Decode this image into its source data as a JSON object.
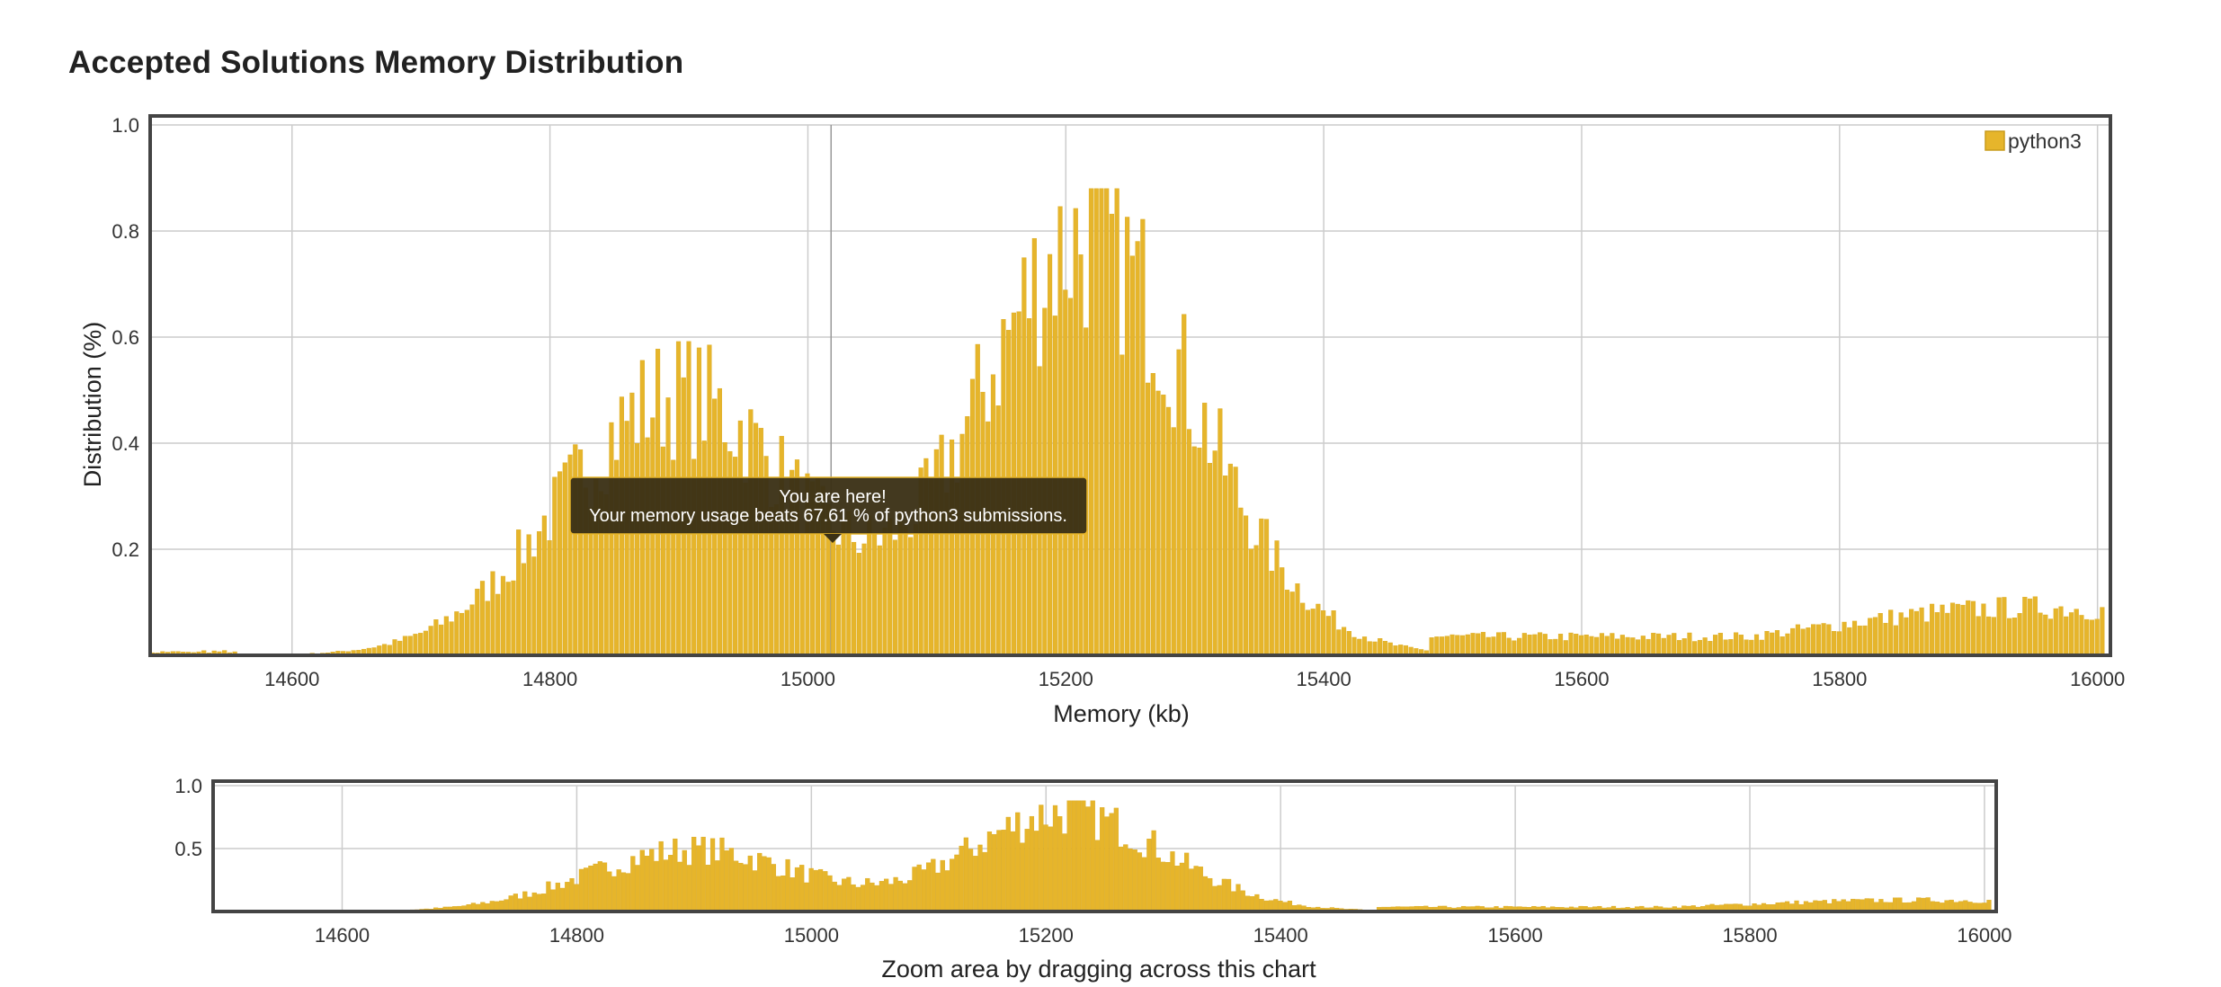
{
  "page": {
    "title": "Accepted Solutions Memory Distribution"
  },
  "colors": {
    "bar": "#e6b52b",
    "bar_edge": "#d9a81f",
    "frame": "#444444",
    "grid": "#cccccc",
    "tooltip_bg": "#3b3116"
  },
  "chart_data": {
    "type": "bar",
    "title": "Accepted Solutions Memory Distribution",
    "xlabel": "Memory (kb)",
    "ylabel": "Distribution (%)",
    "xlim": [
      14490,
      16010
    ],
    "ylim": [
      0,
      1.0
    ],
    "x_ticks": [
      "14600",
      "14800",
      "15000",
      "15200",
      "15400",
      "15600",
      "15800",
      "16000"
    ],
    "y_ticks": [
      "0.2",
      "0.4",
      "0.6",
      "0.8",
      "1.0"
    ],
    "grid": true,
    "legend": {
      "position": "top-right",
      "entries": [
        "python3"
      ]
    },
    "series": [
      {
        "name": "python3",
        "bin_width_kb": 4,
        "peaks": [
          {
            "center": 14900,
            "width": 90,
            "height": 0.49
          },
          {
            "center": 15210,
            "width": 80,
            "height": 0.72
          },
          {
            "center": 15290,
            "width": 80,
            "height": 0.1
          },
          {
            "center": 15950,
            "width": 160,
            "height": 0.09
          }
        ],
        "baseline_from": 15480,
        "baseline_value": 0.035,
        "highlight_x": 15018
      }
    ],
    "tooltip": {
      "line1": "You are here!",
      "line2": "Your memory usage beats 67.61 % of python3 submissions."
    },
    "navigator": {
      "hint": "Zoom area by dragging across this chart",
      "y_ticks": [
        "0.5",
        "1.0"
      ],
      "x_ticks": [
        "14600",
        "14800",
        "15000",
        "15200",
        "15400",
        "15600",
        "15800",
        "16000"
      ]
    }
  }
}
